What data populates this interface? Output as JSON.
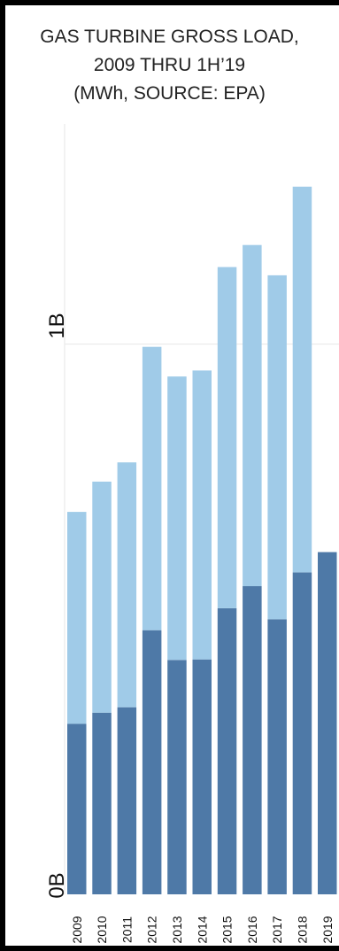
{
  "chart_data": {
    "type": "bar",
    "stacked": true,
    "title_lines": [
      "GAS TURBINE GROSS LOAD,",
      "2009 THRU 1H’19",
      "(MWh, SOURCE: EPA)"
    ],
    "y_tick_labels": [
      "0B",
      "1B"
    ],
    "y_tick_values": [
      0,
      1000000000
    ],
    "ylim": [
      0,
      1400000000
    ],
    "grid": true,
    "categories": [
      "2009",
      "2010",
      "2011",
      "2012",
      "2013",
      "2014",
      "2015",
      "2016",
      "2017",
      "2018",
      "2019"
    ],
    "series": [
      {
        "color": "#4e79a7",
        "values": [
          310000000,
          330000000,
          340000000,
          480000000,
          426000000,
          427000000,
          520000000,
          560000000,
          500000000,
          585000000,
          622000000
        ]
      },
      {
        "color": "#a0cbe8",
        "values": [
          385000000,
          420000000,
          445000000,
          515000000,
          515000000,
          525000000,
          620000000,
          620000000,
          625000000,
          701000000,
          0
        ]
      }
    ]
  }
}
